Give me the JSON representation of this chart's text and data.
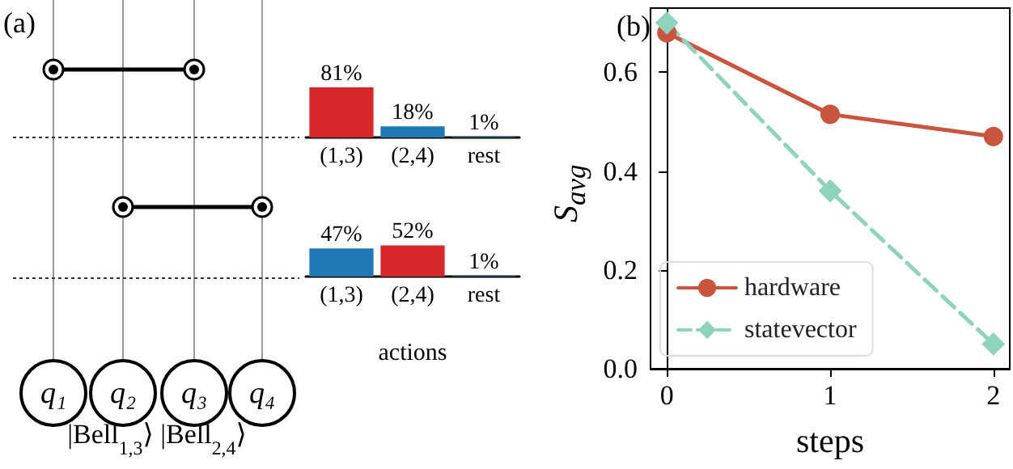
{
  "chart_data": [
    {
      "type": "other",
      "title": "(a)",
      "annotations": [
        "q₁",
        "q₂",
        "q₃",
        "q₄",
        "|Bell$_{1,3}$⟩ |Bell$_{2,4}$⟩"
      ]
    },
    {
      "type": "bar",
      "categories": [
        "(1,3)",
        "(2,4)",
        "rest"
      ],
      "values": [
        81,
        18,
        1
      ],
      "colors": [
        "#d62728",
        "#1f77b4",
        "#1f77b4"
      ],
      "value_labels": [
        "81%",
        "18%",
        "1%"
      ]
    },
    {
      "type": "bar",
      "xlabel": "actions",
      "categories": [
        "(1,3)",
        "(2,4)",
        "rest"
      ],
      "values": [
        47,
        52,
        1
      ],
      "colors": [
        "#1f77b4",
        "#d62728",
        "#1f77b4"
      ],
      "value_labels": [
        "47%",
        "52%",
        "1%"
      ]
    },
    {
      "type": "line",
      "title": "(b)",
      "xlabel": "steps",
      "ylabel": "S$_{avg}$",
      "x": [
        0,
        1,
        2
      ],
      "xlim": [
        -0.1,
        2.1
      ],
      "xticks": [
        0,
        1,
        2
      ],
      "ylim": [
        0,
        0.73
      ],
      "yticks": [
        {
          "value": 0,
          "label": "0.0"
        },
        0.2,
        0.4,
        0.6
      ],
      "legend": "bottom left",
      "series": [
        {
          "name": "hardware",
          "color": "#c9553f",
          "marker": "circle",
          "line_style": "solid",
          "values": [
            0.68,
            0.515,
            0.47
          ]
        },
        {
          "name": "statevector",
          "color": "#8fd3bd",
          "marker": "diamond",
          "line_style": "dashed",
          "values": [
            0.7,
            0.36,
            0.05
          ]
        }
      ]
    }
  ]
}
